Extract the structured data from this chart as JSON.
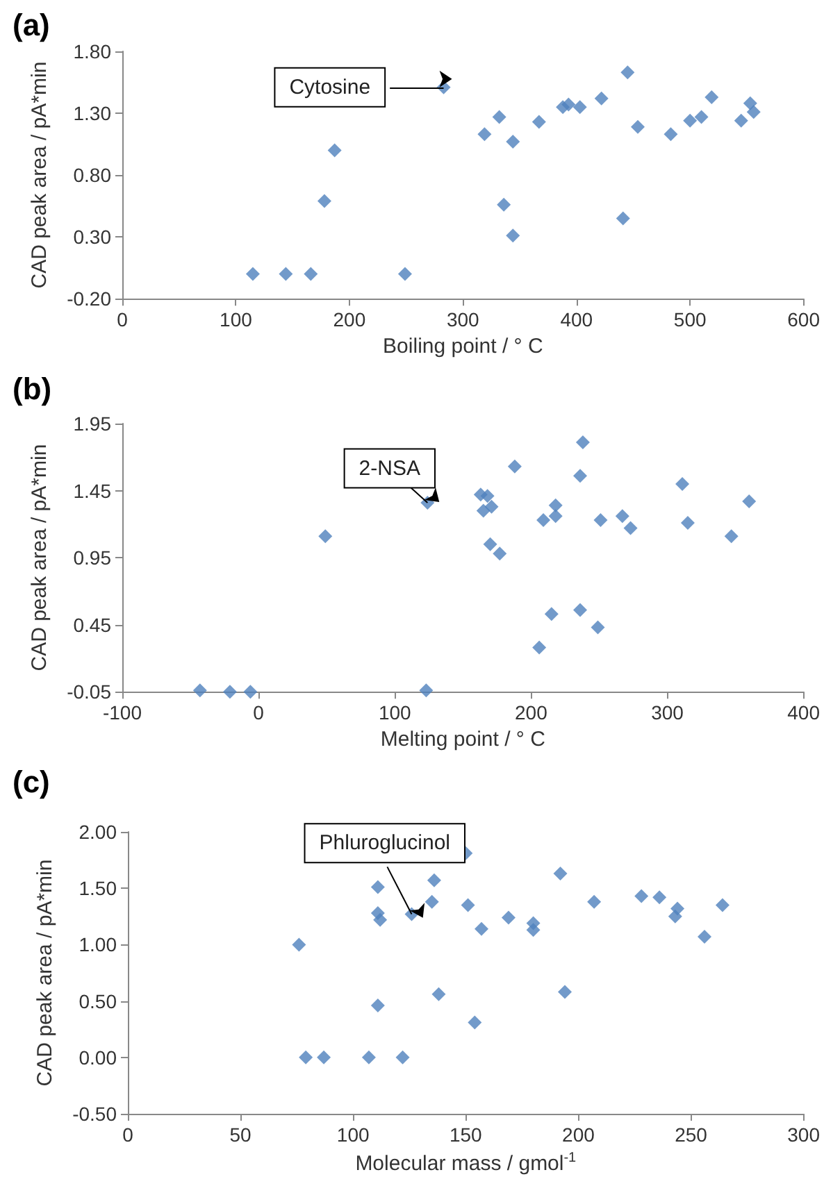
{
  "chart_data": [
    {
      "type": "scatter",
      "title": "(a)",
      "xlabel": "Boiling point / ° C",
      "ylabel": "CAD peak area / pA*min",
      "marker": "diamond",
      "xlim": [
        0,
        600
      ],
      "xticks": [
        0,
        100,
        200,
        300,
        400,
        500,
        600
      ],
      "ylim": [
        -0.2,
        1.8
      ],
      "yticks": [
        {
          "value": -0.2,
          "label": "-0.20"
        },
        {
          "value": 0.3,
          "label": "0.30"
        },
        {
          "value": 0.8,
          "label": "0.80"
        },
        {
          "value": 1.3,
          "label": "1.30"
        },
        {
          "value": 1.8,
          "label": "1.80"
        }
      ],
      "annotations": [
        {
          "text": "Cytosine",
          "x": 283,
          "y": 1.51
        }
      ],
      "series": [
        {
          "color": "#4f81bd",
          "x": [
            115,
            144,
            166,
            249,
            178,
            187,
            283,
            319,
            332,
            336,
            344,
            344,
            367,
            388,
            393,
            403,
            422,
            441,
            445,
            454,
            483,
            500,
            510,
            519,
            545,
            553,
            556
          ],
          "values": [
            0,
            0,
            0,
            0,
            0.59,
            1.0,
            1.51,
            1.13,
            1.27,
            0.56,
            1.07,
            0.31,
            1.23,
            1.35,
            1.37,
            1.35,
            1.42,
            0.45,
            1.63,
            1.19,
            1.13,
            1.24,
            1.27,
            1.43,
            1.24,
            1.38,
            1.31
          ]
        }
      ]
    },
    {
      "type": "scatter",
      "title": "(b)",
      "xlabel": "Melting point / ° C",
      "ylabel": "CAD peak area / pA*min",
      "marker": "diamond",
      "xlim": [
        -100,
        400
      ],
      "xticks": [
        -100,
        0,
        100,
        200,
        300,
        400
      ],
      "ylim": [
        -0.05,
        1.95
      ],
      "yticks": [
        -0.05,
        0.45,
        0.95,
        1.45,
        1.95
      ],
      "annotations": [
        {
          "text": "2-NSA",
          "x": 124,
          "y": 1.36
        }
      ],
      "series": [
        {
          "color": "#4f81bd",
          "x": [
            -43,
            -21,
            -6,
            123,
            49,
            124,
            163,
            168,
            165,
            171,
            170,
            177,
            188,
            209,
            218,
            218,
            206,
            215,
            236,
            236,
            238,
            251,
            249,
            267,
            273,
            311,
            315,
            347,
            360
          ],
          "values": [
            -0.04,
            -0.05,
            -0.05,
            -0.04,
            1.11,
            1.36,
            1.42,
            1.41,
            1.3,
            1.33,
            1.05,
            0.98,
            1.63,
            1.23,
            1.26,
            1.34,
            0.28,
            0.53,
            1.56,
            0.56,
            1.81,
            1.23,
            0.43,
            1.26,
            1.17,
            1.5,
            1.21,
            1.11,
            1.37
          ]
        }
      ]
    },
    {
      "type": "scatter",
      "title": "(c)",
      "xlabel": "Molecular mass / gmol$^{-1}$",
      "ylabel": "CAD peak area / pA*min",
      "marker": "diamond",
      "xlim": [
        0,
        300
      ],
      "xticks": [
        0,
        50,
        100,
        150,
        200,
        250,
        300
      ],
      "ylim": [
        -0.5,
        2.0
      ],
      "yticks": [
        {
          "value": -0.5,
          "label": "-0.50"
        },
        {
          "value": 0,
          "label": "0.00"
        },
        {
          "value": 0.5,
          "label": "0.50"
        },
        {
          "value": 1.0,
          "label": "1.00"
        },
        {
          "value": 1.5,
          "label": "1.50"
        },
        {
          "value": 2.0,
          "label": "2.00"
        }
      ],
      "annotations": [
        {
          "text": "Phluroglucinol",
          "x": 126,
          "y": 1.27
        }
      ],
      "series": [
        {
          "color": "#4f81bd",
          "x": [
            76,
            79,
            87,
            107,
            122,
            111,
            111,
            112,
            111,
            126,
            136,
            135,
            138,
            150,
            151,
            154,
            157,
            169,
            180,
            180,
            192,
            194,
            207,
            228,
            236,
            243,
            244,
            256,
            264
          ],
          "values": [
            1.0,
            0,
            0,
            0,
            0,
            1.51,
            1.28,
            1.22,
            0.46,
            1.27,
            1.57,
            1.38,
            0.56,
            1.81,
            1.35,
            0.31,
            1.14,
            1.24,
            1.19,
            1.13,
            1.63,
            0.58,
            1.38,
            1.43,
            1.42,
            1.25,
            1.32,
            1.07,
            1.35
          ]
        }
      ]
    }
  ]
}
